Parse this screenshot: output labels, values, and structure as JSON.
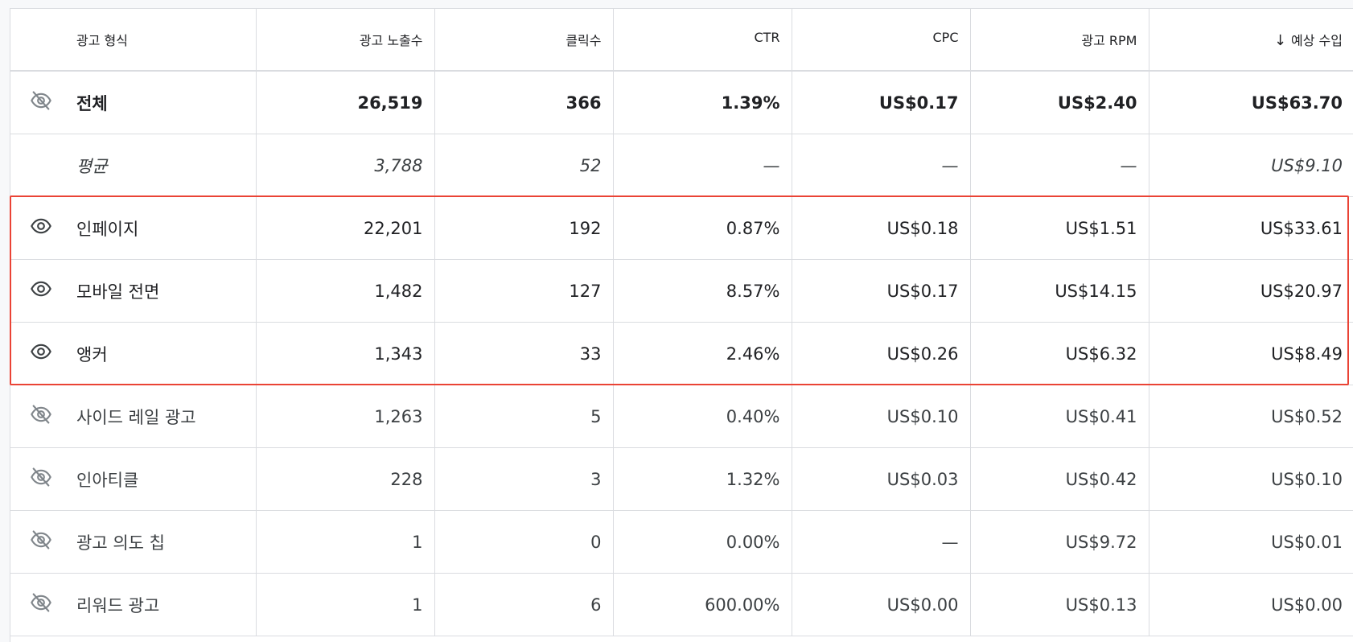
{
  "columns": {
    "format": "광고 형식",
    "impressions": "광고 노출수",
    "clicks": "클릭수",
    "ctr": "CTR",
    "cpc": "CPC",
    "rpm": "광고 RPM",
    "earnings": "예상 수입",
    "earnings_sort_icon": "arrow-down-icon"
  },
  "rows": [
    {
      "icon": "eye-off-icon",
      "format": "전체",
      "impressions": "26,519",
      "clicks": "366",
      "ctr": "1.39%",
      "cpc": "US$0.17",
      "rpm": "US$2.40",
      "earnings": "US$63.70"
    },
    {
      "icon": "",
      "format": "평균",
      "impressions": "3,788",
      "clicks": "52",
      "ctr": "—",
      "cpc": "—",
      "rpm": "—",
      "earnings": "US$9.10"
    },
    {
      "icon": "eye-icon",
      "format": "인페이지",
      "impressions": "22,201",
      "clicks": "192",
      "ctr": "0.87%",
      "cpc": "US$0.18",
      "rpm": "US$1.51",
      "earnings": "US$33.61"
    },
    {
      "icon": "eye-icon",
      "format": "모바일 전면",
      "impressions": "1,482",
      "clicks": "127",
      "ctr": "8.57%",
      "cpc": "US$0.17",
      "rpm": "US$14.15",
      "earnings": "US$20.97"
    },
    {
      "icon": "eye-icon",
      "format": "앵커",
      "impressions": "1,343",
      "clicks": "33",
      "ctr": "2.46%",
      "cpc": "US$0.26",
      "rpm": "US$6.32",
      "earnings": "US$8.49"
    },
    {
      "icon": "eye-off-icon",
      "format": "사이드 레일 광고",
      "impressions": "1,263",
      "clicks": "5",
      "ctr": "0.40%",
      "cpc": "US$0.10",
      "rpm": "US$0.41",
      "earnings": "US$0.52"
    },
    {
      "icon": "eye-off-icon",
      "format": "인아티클",
      "impressions": "228",
      "clicks": "3",
      "ctr": "1.32%",
      "cpc": "US$0.03",
      "rpm": "US$0.42",
      "earnings": "US$0.10"
    },
    {
      "icon": "eye-off-icon",
      "format": "광고 의도 칩",
      "impressions": "1",
      "clicks": "0",
      "ctr": "0.00%",
      "cpc": "—",
      "rpm": "US$9.72",
      "earnings": "US$0.01"
    },
    {
      "icon": "eye-off-icon",
      "format": "리워드 광고",
      "impressions": "1",
      "clicks": "6",
      "ctr": "600.00%",
      "cpc": "US$0.00",
      "rpm": "US$0.13",
      "earnings": "US$0.00"
    }
  ],
  "highlight_color": "#ea4335",
  "colors": {
    "border": "#dadce0",
    "text": "#202124",
    "icon_off": "#80868b",
    "icon_on": "#3c4043"
  }
}
